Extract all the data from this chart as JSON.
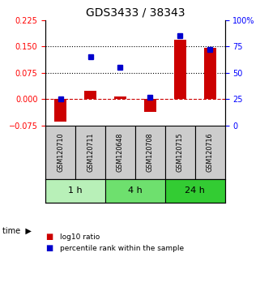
{
  "title": "GDS3433 / 38343",
  "samples": [
    "GSM120710",
    "GSM120711",
    "GSM120648",
    "GSM120708",
    "GSM120715",
    "GSM120716"
  ],
  "log10_ratio": [
    -0.063,
    0.025,
    0.008,
    -0.035,
    0.17,
    0.145
  ],
  "percentile_rank": [
    25,
    65,
    55,
    27,
    85,
    72
  ],
  "left_ylim": [
    -0.075,
    0.225
  ],
  "right_ylim": [
    0,
    100
  ],
  "left_yticks": [
    -0.075,
    0,
    0.075,
    0.15,
    0.225
  ],
  "right_yticks": [
    0,
    25,
    50,
    75,
    100
  ],
  "right_yticklabels": [
    "0",
    "25",
    "50",
    "75",
    "100%"
  ],
  "hlines_y": [
    0.075,
    0.15
  ],
  "time_groups": [
    {
      "label": "1 h",
      "start": 0,
      "end": 2,
      "color": "#b8f0b8"
    },
    {
      "label": "4 h",
      "start": 2,
      "end": 4,
      "color": "#6ee06e"
    },
    {
      "label": "24 h",
      "start": 4,
      "end": 6,
      "color": "#33cc33"
    }
  ],
  "bar_color": "#cc0000",
  "square_color": "#0000cc",
  "bar_width": 0.4,
  "background_color": "#ffffff",
  "plot_bg_color": "#ffffff",
  "sample_box_color": "#cccccc",
  "dashed_zero_color": "#cc0000",
  "title_fontsize": 10,
  "tick_fontsize": 7,
  "label_fontsize": 7
}
